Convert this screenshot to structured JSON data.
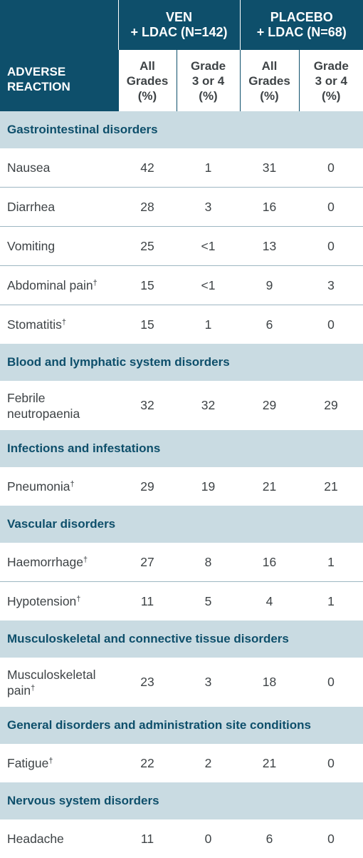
{
  "header": {
    "reaction_line1": "ADVERSE",
    "reaction_line2": "REACTION",
    "ven_line1": "VEN",
    "ven_line2": "+ LDAC (N=142)",
    "placebo_line1": "PLACEBO",
    "placebo_line2": "+ LDAC (N=68)",
    "sub_all": [
      "All",
      "Grades",
      "(%)"
    ],
    "sub_grade": [
      "Grade",
      "3 or 4",
      "(%)"
    ]
  },
  "dagger": "†",
  "groups": [
    {
      "category": "Gastrointestinal disorders",
      "rows": [
        {
          "label": "Nausea",
          "dagger": false,
          "values": [
            "42",
            "1",
            "31",
            "0"
          ]
        },
        {
          "label": "Diarrhea",
          "dagger": false,
          "values": [
            "28",
            "3",
            "16",
            "0"
          ]
        },
        {
          "label": "Vomiting",
          "dagger": false,
          "values": [
            "25",
            "<1",
            "13",
            "0"
          ]
        },
        {
          "label": "Abdominal pain",
          "dagger": true,
          "values": [
            "15",
            "<1",
            "9",
            "3"
          ]
        },
        {
          "label": "Stomatitis",
          "dagger": true,
          "values": [
            "15",
            "1",
            "6",
            "0"
          ]
        }
      ]
    },
    {
      "category": "Blood and lymphatic system disorders",
      "rows": [
        {
          "label_line1": "Febrile",
          "label_line2": "neutropaenia",
          "dagger": false,
          "values": [
            "32",
            "32",
            "29",
            "29"
          ]
        }
      ]
    },
    {
      "category": "Infections and infestations",
      "rows": [
        {
          "label": "Pneumonia",
          "dagger": true,
          "values": [
            "29",
            "19",
            "21",
            "21"
          ]
        }
      ]
    },
    {
      "category": "Vascular disorders",
      "rows": [
        {
          "label": "Haemorrhage",
          "dagger": true,
          "values": [
            "27",
            "8",
            "16",
            "1"
          ]
        },
        {
          "label": "Hypotension",
          "dagger": true,
          "values": [
            "11",
            "5",
            "4",
            "1"
          ]
        }
      ]
    },
    {
      "category": "Musculoskeletal and connective tissue disorders",
      "rows": [
        {
          "label_line1": "Musculoskeletal",
          "label_line2": "pain",
          "dagger": true,
          "values": [
            "23",
            "3",
            "18",
            "0"
          ]
        }
      ]
    },
    {
      "category": "General disorders and administration site conditions",
      "rows": [
        {
          "label": "Fatigue",
          "dagger": true,
          "values": [
            "22",
            "2",
            "21",
            "0"
          ]
        }
      ]
    },
    {
      "category": "Nervous system disorders",
      "rows": [
        {
          "label": "Headache",
          "dagger": false,
          "values": [
            "11",
            "0",
            "6",
            "0"
          ]
        }
      ]
    }
  ]
}
